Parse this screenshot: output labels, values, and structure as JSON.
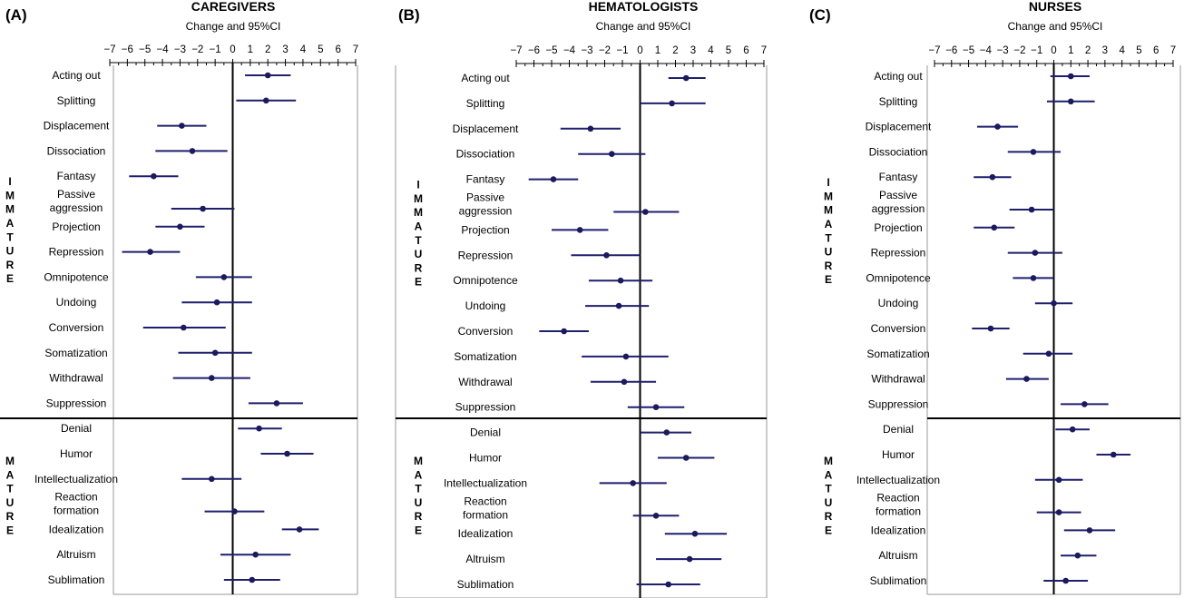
{
  "chart_data": [
    {
      "type": "forest",
      "panel_label": "(A)",
      "title": "CAREGIVERS",
      "xlabel": "Change and 95%CI",
      "xlim": [
        -7,
        7
      ],
      "xticks": [
        "−7",
        "−6",
        "−5",
        "−4",
        "−3",
        "−2",
        "−1",
        "0",
        "1",
        "2",
        "3",
        "4",
        "5",
        "6",
        "7"
      ],
      "groups": [
        {
          "name": "IMMATURE",
          "letters": [
            "I",
            "M",
            "M",
            "A",
            "T",
            "U",
            "R",
            "E"
          ]
        },
        {
          "name": "MATURE",
          "letters": [
            "M",
            "A",
            "T",
            "U",
            "R",
            "E"
          ]
        }
      ],
      "rows": [
        {
          "label": [
            "Acting out"
          ],
          "group": "immature",
          "est": 2.0,
          "lo": 0.7,
          "hi": 3.3
        },
        {
          "label": [
            "Splitting"
          ],
          "group": "immature",
          "est": 1.9,
          "lo": 0.2,
          "hi": 3.6
        },
        {
          "label": [
            "Displacement"
          ],
          "group": "immature",
          "est": -2.9,
          "lo": -4.3,
          "hi": -1.5
        },
        {
          "label": [
            "Dissociation"
          ],
          "group": "immature",
          "est": -2.3,
          "lo": -4.4,
          "hi": -0.3
        },
        {
          "label": [
            "Fantasy"
          ],
          "group": "immature",
          "est": -4.5,
          "lo": -5.9,
          "hi": -3.1
        },
        {
          "label": [
            "Passive",
            "aggression"
          ],
          "group": "immature",
          "est": -1.7,
          "lo": -3.5,
          "hi": 0.1
        },
        {
          "label": [
            "Projection"
          ],
          "group": "immature",
          "est": -3.0,
          "lo": -4.4,
          "hi": -1.6
        },
        {
          "label": [
            "Repression"
          ],
          "group": "immature",
          "est": -4.7,
          "lo": -6.3,
          "hi": -3.0
        },
        {
          "label": [
            "Omnipotence"
          ],
          "group": "immature",
          "est": -0.5,
          "lo": -2.1,
          "hi": 1.1
        },
        {
          "label": [
            "Undoing"
          ],
          "group": "immature",
          "est": -0.9,
          "lo": -2.9,
          "hi": 1.1
        },
        {
          "label": [
            "Conversion"
          ],
          "group": "immature",
          "est": -2.8,
          "lo": -5.1,
          "hi": -0.4
        },
        {
          "label": [
            "Somatization"
          ],
          "group": "immature",
          "est": -1.0,
          "lo": -3.1,
          "hi": 1.1
        },
        {
          "label": [
            "Withdrawal"
          ],
          "group": "immature",
          "est": -1.2,
          "lo": -3.4,
          "hi": 1.0
        },
        {
          "label": [
            "Suppression"
          ],
          "group": "immature",
          "est": 2.5,
          "lo": 0.9,
          "hi": 4.0
        },
        {
          "label": [
            "Denial"
          ],
          "group": "mature",
          "est": 1.5,
          "lo": 0.3,
          "hi": 2.8
        },
        {
          "label": [
            "Humor"
          ],
          "group": "mature",
          "est": 3.1,
          "lo": 1.6,
          "hi": 4.6
        },
        {
          "label": [
            "Intellectualization"
          ],
          "group": "mature",
          "est": -1.2,
          "lo": -2.9,
          "hi": 0.5
        },
        {
          "label": [
            "Reaction",
            "formation"
          ],
          "group": "mature",
          "est": 0.1,
          "lo": -1.6,
          "hi": 1.8
        },
        {
          "label": [
            "Idealization"
          ],
          "group": "mature",
          "est": 3.8,
          "lo": 2.8,
          "hi": 4.9
        },
        {
          "label": [
            "Altruism"
          ],
          "group": "mature",
          "est": 1.3,
          "lo": -0.7,
          "hi": 3.3
        },
        {
          "label": [
            "Sublimation"
          ],
          "group": "mature",
          "est": 1.1,
          "lo": -0.5,
          "hi": 2.7
        }
      ]
    },
    {
      "type": "forest",
      "panel_label": "(B)",
      "title": "HEMATOLOGISTS",
      "xlabel": "Change and 95%CI",
      "xlim": [
        -7,
        7
      ],
      "xticks": [
        "−7",
        "−6",
        "−5",
        "−4",
        "−3",
        "−2",
        "−1",
        "0",
        "1",
        "2",
        "3",
        "4",
        "5",
        "6",
        "7"
      ],
      "groups": [
        {
          "name": "IMMATURE",
          "letters": [
            "I",
            "M",
            "M",
            "A",
            "T",
            "U",
            "R",
            "E"
          ]
        },
        {
          "name": "MATURE",
          "letters": [
            "M",
            "A",
            "T",
            "U",
            "R",
            "E"
          ]
        }
      ],
      "rows": [
        {
          "label": [
            "Acting out"
          ],
          "group": "immature",
          "est": 2.6,
          "lo": 1.6,
          "hi": 3.7
        },
        {
          "label": [
            "Splitting"
          ],
          "group": "immature",
          "est": 1.8,
          "lo": 0.0,
          "hi": 3.7
        },
        {
          "label": [
            "Displacement"
          ],
          "group": "immature",
          "est": -2.8,
          "lo": -4.5,
          "hi": -1.1
        },
        {
          "label": [
            "Dissociation"
          ],
          "group": "immature",
          "est": -1.6,
          "lo": -3.5,
          "hi": 0.3
        },
        {
          "label": [
            "Fantasy"
          ],
          "group": "immature",
          "est": -4.9,
          "lo": -6.3,
          "hi": -3.5
        },
        {
          "label": [
            "Passive",
            "aggression"
          ],
          "group": "immature",
          "est": 0.3,
          "lo": -1.5,
          "hi": 2.2
        },
        {
          "label": [
            "Projection"
          ],
          "group": "immature",
          "est": -3.4,
          "lo": -5.0,
          "hi": -1.8
        },
        {
          "label": [
            "Repression"
          ],
          "group": "immature",
          "est": -1.9,
          "lo": -3.9,
          "hi": 0.0
        },
        {
          "label": [
            "Omnipotence"
          ],
          "group": "immature",
          "est": -1.1,
          "lo": -2.9,
          "hi": 0.7
        },
        {
          "label": [
            "Undoing"
          ],
          "group": "immature",
          "est": -1.2,
          "lo": -3.1,
          "hi": 0.5
        },
        {
          "label": [
            "Conversion"
          ],
          "group": "immature",
          "est": -4.3,
          "lo": -5.7,
          "hi": -2.9
        },
        {
          "label": [
            "Somatization"
          ],
          "group": "immature",
          "est": -0.8,
          "lo": -3.3,
          "hi": 1.6
        },
        {
          "label": [
            "Withdrawal"
          ],
          "group": "immature",
          "est": -0.9,
          "lo": -2.8,
          "hi": 0.9
        },
        {
          "label": [
            "Suppression"
          ],
          "group": "immature",
          "est": 0.9,
          "lo": -0.7,
          "hi": 2.5
        },
        {
          "label": [
            "Denial"
          ],
          "group": "mature",
          "est": 1.5,
          "lo": 0.0,
          "hi": 2.9
        },
        {
          "label": [
            "Humor"
          ],
          "group": "mature",
          "est": 2.6,
          "lo": 1.0,
          "hi": 4.2
        },
        {
          "label": [
            "Intellectualization"
          ],
          "group": "mature",
          "est": -0.4,
          "lo": -2.3,
          "hi": 1.5
        },
        {
          "label": [
            "Reaction",
            "formation"
          ],
          "group": "mature",
          "est": 0.9,
          "lo": -0.4,
          "hi": 2.2
        },
        {
          "label": [
            "Idealization"
          ],
          "group": "mature",
          "est": 3.1,
          "lo": 1.4,
          "hi": 4.9
        },
        {
          "label": [
            "Altruism"
          ],
          "group": "mature",
          "est": 2.8,
          "lo": 0.9,
          "hi": 4.6
        },
        {
          "label": [
            "Sublimation"
          ],
          "group": "mature",
          "est": 1.6,
          "lo": -0.2,
          "hi": 3.4
        }
      ]
    },
    {
      "type": "forest",
      "panel_label": "(C)",
      "title": "NURSES",
      "xlabel": "Change and 95%CI",
      "xlim": [
        -7,
        7
      ],
      "xticks": [
        "−7",
        "−6",
        "−5",
        "−4",
        "−3",
        "−2",
        "−1",
        "0",
        "1",
        "2",
        "3",
        "4",
        "5",
        "6",
        "7"
      ],
      "groups": [
        {
          "name": "IMMATURE",
          "letters": [
            "I",
            "M",
            "M",
            "A",
            "T",
            "U",
            "R",
            "E"
          ]
        },
        {
          "name": "MATURE",
          "letters": [
            "M",
            "A",
            "T",
            "U",
            "R",
            "E"
          ]
        }
      ],
      "rows": [
        {
          "label": [
            "Acting out"
          ],
          "group": "immature",
          "est": 1.0,
          "lo": -0.2,
          "hi": 2.1
        },
        {
          "label": [
            "Splitting"
          ],
          "group": "immature",
          "est": 1.0,
          "lo": -0.4,
          "hi": 2.4
        },
        {
          "label": [
            "Displacement"
          ],
          "group": "immature",
          "est": -3.3,
          "lo": -4.5,
          "hi": -2.1
        },
        {
          "label": [
            "Dissociation"
          ],
          "group": "immature",
          "est": -1.2,
          "lo": -2.7,
          "hi": 0.4
        },
        {
          "label": [
            "Fantasy"
          ],
          "group": "immature",
          "est": -3.6,
          "lo": -4.7,
          "hi": -2.5
        },
        {
          "label": [
            "Passive",
            "aggression"
          ],
          "group": "immature",
          "est": -1.3,
          "lo": -2.6,
          "hi": 0.0
        },
        {
          "label": [
            "Projection"
          ],
          "group": "immature",
          "est": -3.5,
          "lo": -4.7,
          "hi": -2.3
        },
        {
          "label": [
            "Repression"
          ],
          "group": "immature",
          "est": -1.1,
          "lo": -2.7,
          "hi": 0.5
        },
        {
          "label": [
            "Omnipotence"
          ],
          "group": "immature",
          "est": -1.2,
          "lo": -2.4,
          "hi": 0.0
        },
        {
          "label": [
            "Undoing"
          ],
          "group": "immature",
          "est": 0.0,
          "lo": -1.1,
          "hi": 1.1
        },
        {
          "label": [
            "Conversion"
          ],
          "group": "immature",
          "est": -3.7,
          "lo": -4.8,
          "hi": -2.6
        },
        {
          "label": [
            "Somatization"
          ],
          "group": "immature",
          "est": -0.3,
          "lo": -1.8,
          "hi": 1.1
        },
        {
          "label": [
            "Withdrawal"
          ],
          "group": "immature",
          "est": -1.6,
          "lo": -2.8,
          "hi": -0.3
        },
        {
          "label": [
            "Suppression"
          ],
          "group": "immature",
          "est": 1.8,
          "lo": 0.4,
          "hi": 3.2
        },
        {
          "label": [
            "Denial"
          ],
          "group": "mature",
          "est": 1.1,
          "lo": 0.1,
          "hi": 2.1
        },
        {
          "label": [
            "Humor"
          ],
          "group": "mature",
          "est": 3.5,
          "lo": 2.5,
          "hi": 4.5
        },
        {
          "label": [
            "Intellectualization"
          ],
          "group": "mature",
          "est": 0.3,
          "lo": -1.1,
          "hi": 1.7
        },
        {
          "label": [
            "Reaction",
            "formation"
          ],
          "group": "mature",
          "est": 0.3,
          "lo": -1.0,
          "hi": 1.6
        },
        {
          "label": [
            "Idealization"
          ],
          "group": "mature",
          "est": 2.1,
          "lo": 0.6,
          "hi": 3.6
        },
        {
          "label": [
            "Altruism"
          ],
          "group": "mature",
          "est": 1.4,
          "lo": 0.4,
          "hi": 2.5
        },
        {
          "label": [
            "Sublimation"
          ],
          "group": "mature",
          "est": 0.7,
          "lo": -0.6,
          "hi": 2.0
        }
      ]
    }
  ],
  "colors": {
    "marker": "#1a1a5e",
    "ci_line": "#1f1f6e",
    "axis": "#000000",
    "frame": "#9a9a9a"
  }
}
